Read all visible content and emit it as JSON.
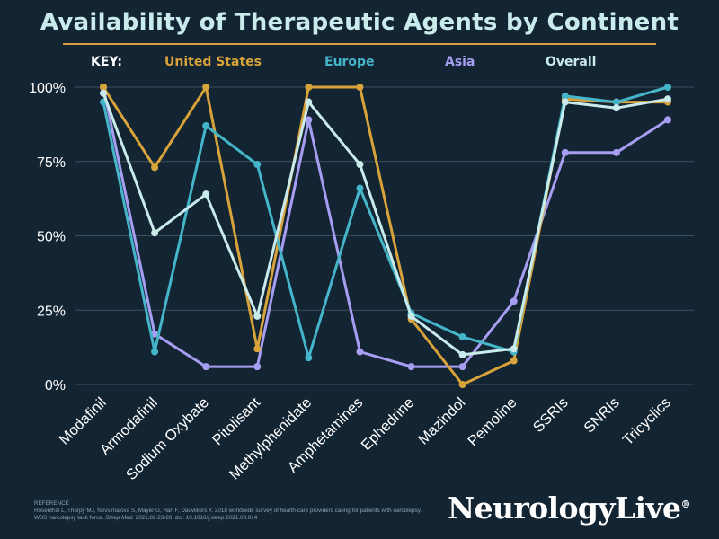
{
  "title": "Availability of Therapeutic Agents by Continent",
  "legend": {
    "key_label": "KEY:",
    "entries": [
      {
        "name": "United States",
        "color": "#d8a33a"
      },
      {
        "name": "Europe",
        "color": "#45b5c9"
      },
      {
        "name": "Asia",
        "color": "#a79ef2"
      },
      {
        "name": "Overall",
        "color": "#c9ebeb"
      }
    ]
  },
  "chart_data": {
    "type": "line",
    "title": "Availability of Therapeutic Agents by Continent",
    "xlabel": "",
    "ylabel": "",
    "ylim": [
      0,
      100
    ],
    "yticks": [
      "0%",
      "25%",
      "50%",
      "75%",
      "100%"
    ],
    "ytick_values": [
      0,
      25,
      50,
      75,
      100
    ],
    "grid": true,
    "legend_position": "top",
    "categories": [
      "Modafinil",
      "Armodafinil",
      "Sodium Oxybate",
      "Pitolisant",
      "Methylphenidate",
      "Amphetamines",
      "Ephedrine",
      "Mazindol",
      "Pemoline",
      "SSRIs",
      "SNRIs",
      "Tricyclics"
    ],
    "series": [
      {
        "name": "Asia",
        "color": "#a79ef2",
        "values": [
          100,
          17,
          6,
          6,
          89,
          11,
          6,
          6,
          28,
          78,
          78,
          89
        ]
      },
      {
        "name": "United States",
        "color": "#d8a33a",
        "values": [
          100,
          73,
          100,
          12,
          100,
          100,
          22,
          0,
          8,
          96,
          95,
          95
        ]
      },
      {
        "name": "Europe",
        "color": "#45b5c9",
        "values": [
          95,
          11,
          87,
          74,
          9,
          66,
          24,
          16,
          11,
          97,
          95,
          100
        ]
      },
      {
        "name": "Overall",
        "color": "#c9ebeb",
        "values": [
          98,
          51,
          64,
          23,
          95,
          74,
          23,
          10,
          12,
          95,
          93,
          96
        ]
      }
    ]
  },
  "reference": {
    "heading": "REFERENCE",
    "line1": "Rosenthal L, Thorpy MJ, Nevsimalova S, Mayer G, Han F, Dauvilliers Y. 2018 worldwide survey of health-care providers caring for patients with narcolepsy.",
    "line2_plain": "WSS narcolepsy task force. ",
    "line2_italic": "Sleep Med.",
    "line2_rest": " 2021;82:23-28. doi: 10.1016/j.sleep.2021.03.014"
  },
  "brand": {
    "name": "NeurologyLive",
    "mark": "®"
  }
}
